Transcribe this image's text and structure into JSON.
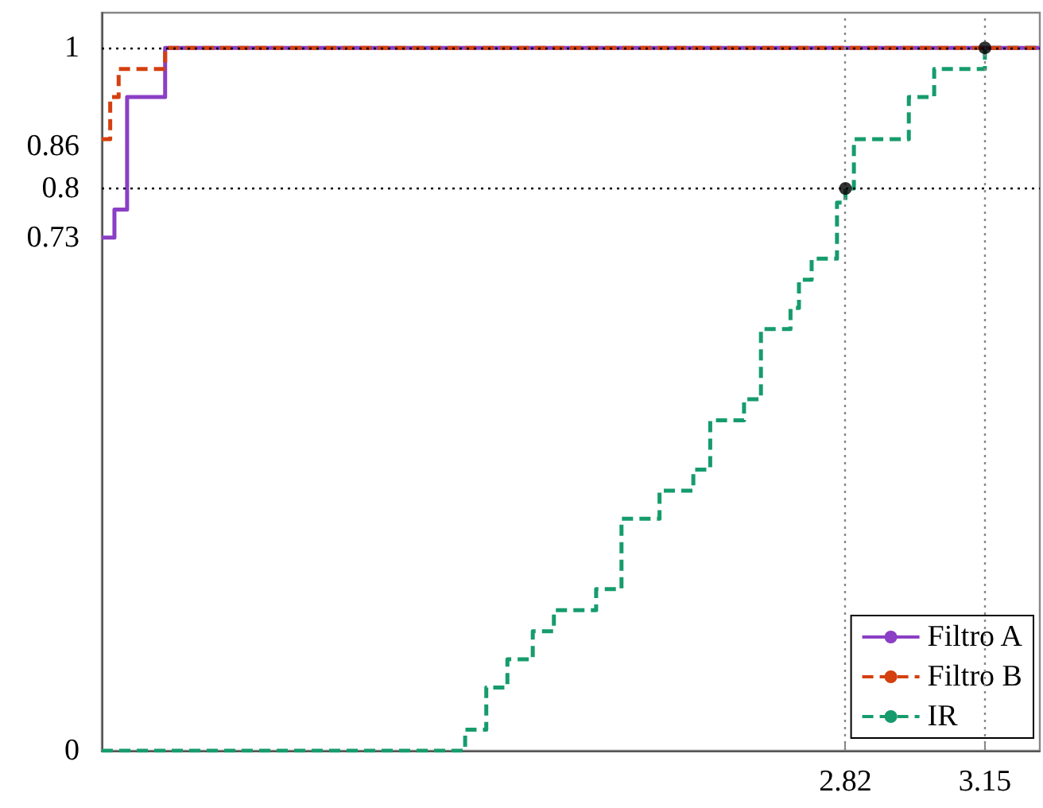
{
  "chart_data": {
    "type": "step",
    "xlim": [
      1.06,
      3.28
    ],
    "xticks": [
      2.82,
      3.15
    ],
    "ylim": [
      0,
      1.05
    ],
    "yticks": [
      0,
      0.73,
      0.8,
      0.86,
      1
    ],
    "grid": false,
    "legend": "bottom right",
    "marker": "none",
    "series": [
      {
        "name": "Filtro A",
        "color": "#8a3fc4",
        "line_style": "solid",
        "x": [
          1.06,
          1.09,
          1.12,
          1.21,
          3.28
        ],
        "values": [
          0.73,
          0.77,
          0.93,
          1,
          1
        ]
      },
      {
        "name": "Filtro B",
        "color": "#d4400f",
        "line_style": "dashed",
        "x": [
          1.06,
          1.08,
          1.1,
          1.21,
          3.28
        ],
        "values": [
          0.87,
          0.93,
          0.97,
          1,
          1
        ]
      },
      {
        "name": "IR",
        "color": "#169c6c",
        "line_style": "dashed",
        "x": [
          1.06,
          1.92,
          1.97,
          2.02,
          2.08,
          2.13,
          2.23,
          2.29,
          2.38,
          2.46,
          2.5,
          2.58,
          2.62,
          2.69,
          2.71,
          2.74,
          2.8,
          2.82,
          2.84,
          2.97,
          3.03,
          3.15,
          3.28
        ],
        "values": [
          0,
          0.03,
          0.09,
          0.13,
          0.17,
          0.2,
          0.23,
          0.33,
          0.37,
          0.4,
          0.47,
          0.5,
          0.6,
          0.63,
          0.67,
          0.7,
          0.78,
          0.8,
          0.87,
          0.93,
          0.97,
          1,
          1
        ]
      },
      {
        "type": "scatter",
        "marker": "circle",
        "color": "#000000",
        "x": [
          2.82,
          3.15
        ],
        "values": [
          0.8,
          1
        ]
      }
    ],
    "ref_lines": [
      {
        "axis": "y",
        "value": 1,
        "color": "#000000",
        "line_style": "dotted"
      },
      {
        "axis": "y",
        "value": 0.8,
        "color": "#000000",
        "line_style": "dotted"
      },
      {
        "axis": "x",
        "value": 2.82,
        "color": "#888888",
        "line_style": "dotted"
      },
      {
        "axis": "x",
        "value": 3.15,
        "color": "#888888",
        "line_style": "dotted"
      }
    ]
  }
}
